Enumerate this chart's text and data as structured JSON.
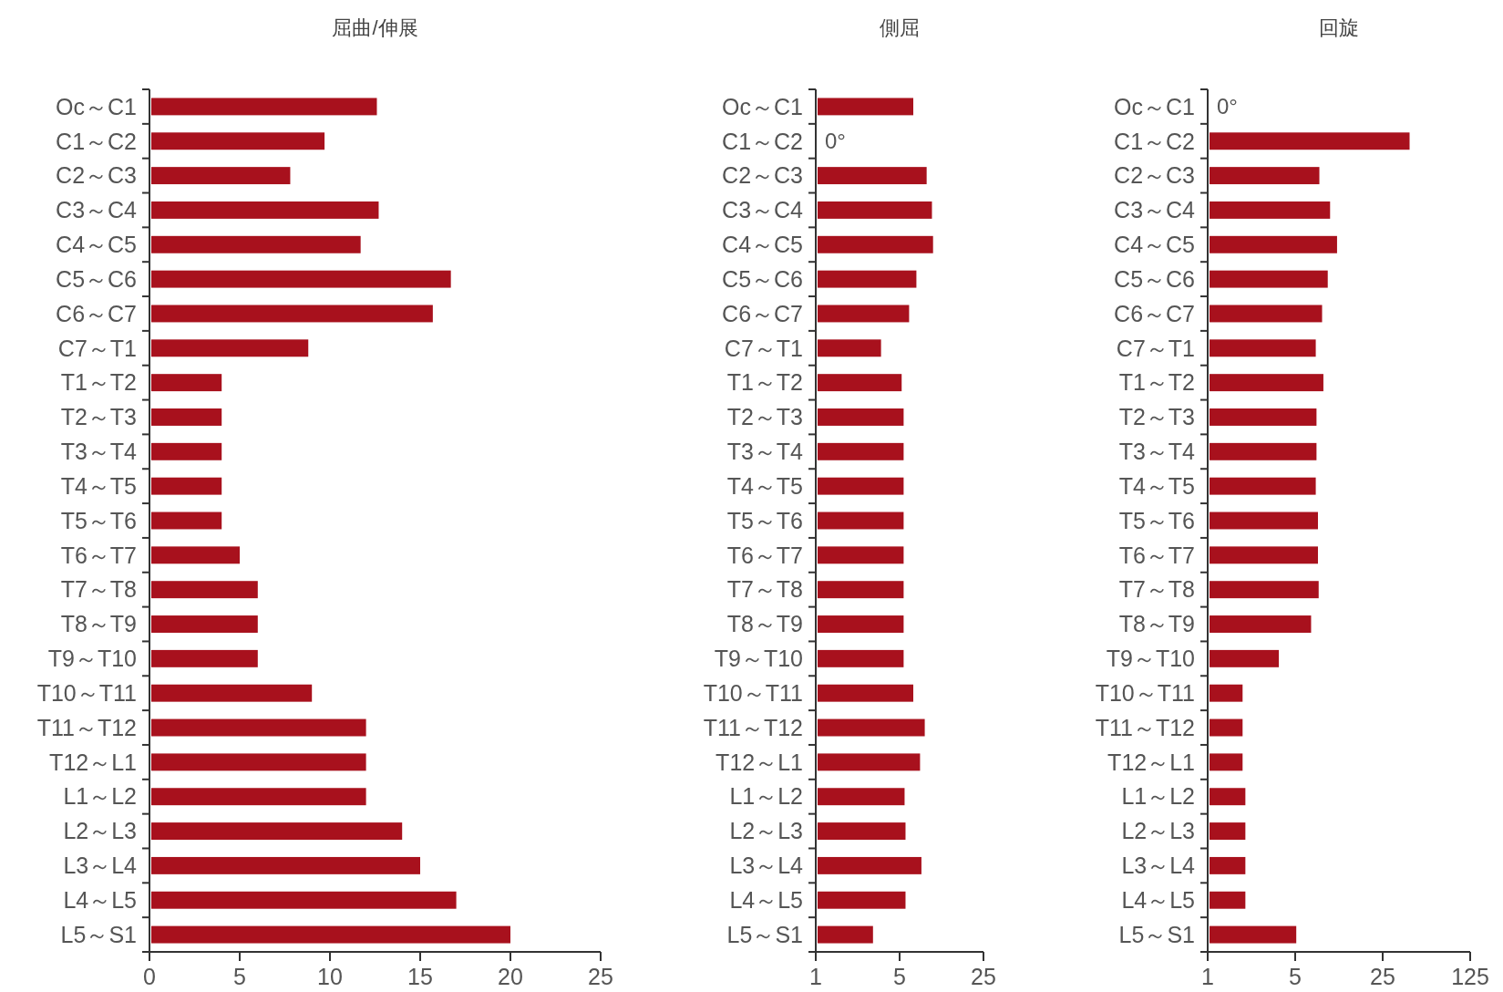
{
  "chart_data": [
    {
      "type": "bar",
      "orientation": "horizontal",
      "title": "屈曲/伸展",
      "categories": [
        "Oc～C1",
        "C1～C2",
        "C2～C3",
        "C3～C4",
        "C4～C5",
        "C5～C6",
        "C6～C7",
        "C7～T1",
        "T1～T2",
        "T2～T3",
        "T3～T4",
        "T4～T5",
        "T5～T6",
        "T6～T7",
        "T7～T8",
        "T8～T9",
        "T9～T10",
        "T10～T11",
        "T11～T12",
        "T12～L1",
        "L1～L2",
        "L2～L3",
        "L3～L4",
        "L4～L5",
        "L5～S1"
      ],
      "values": [
        12.6,
        9.7,
        7.8,
        12.7,
        11.7,
        16.7,
        15.7,
        8.8,
        4,
        4,
        4,
        4,
        4,
        5,
        6,
        6,
        6,
        9,
        12,
        12,
        12,
        14,
        15,
        17,
        20
      ],
      "color": "#a8111d",
      "xlim": [
        0,
        25
      ],
      "xticks": [
        0,
        5,
        10,
        15,
        20,
        25
      ]
    },
    {
      "type": "bar",
      "orientation": "horizontal",
      "title": "側屈",
      "log": "x",
      "categories": [
        "Oc～C1",
        "C1～C2",
        "C2～C3",
        "C3～C4",
        "C4～C5",
        "C5～C6",
        "C6～C7",
        "C7～T1",
        "T1～T2",
        "T2～T3",
        "T3～T4",
        "T4～T5",
        "T5～T6",
        "T6～T7",
        "T7～T8",
        "T8～T9",
        "T9～T10",
        "T10～T11",
        "T11～T12",
        "T12～L1",
        "L1～L2",
        "L2～L3",
        "L3～L4",
        "L4～L5",
        "L5～S1"
      ],
      "values": [
        6.5,
        null,
        8.4,
        9.3,
        9.5,
        6.9,
        6,
        3.5,
        5.2,
        5.4,
        5.4,
        5.4,
        5.4,
        5.4,
        5.4,
        5.4,
        5.4,
        6.5,
        8.1,
        7.4,
        5.5,
        5.6,
        7.6,
        5.6,
        3
      ],
      "color": "#a8111d",
      "xlim": [
        1,
        25
      ],
      "xticks": [
        1,
        5,
        25
      ],
      "annotations": [
        "0°"
      ]
    },
    {
      "type": "bar",
      "orientation": "horizontal",
      "title": "回旋",
      "log": "x",
      "categories": [
        "Oc～C1",
        "C1～C2",
        "C2～C3",
        "C3～C4",
        "C4～C5",
        "C5～C6",
        "C6～C7",
        "C7～T1",
        "T1～T2",
        "T2～T3",
        "T3～T4",
        "T4～T5",
        "T5～T6",
        "T6～T7",
        "T7～T8",
        "T8～T9",
        "T9～T10",
        "T10～T11",
        "T11～T12",
        "T12～L1",
        "L1～L2",
        "L2～L3",
        "L3～L4",
        "L4～L5",
        "L5～S1"
      ],
      "values": [
        null,
        41,
        7.8,
        9.5,
        10.8,
        9.1,
        8.2,
        7.3,
        8.4,
        7.4,
        7.4,
        7.3,
        7.6,
        7.6,
        7.7,
        6.7,
        3.7,
        1.9,
        1.9,
        1.9,
        2,
        2,
        2,
        2,
        5.1
      ],
      "color": "#a8111d",
      "xlim": [
        1,
        125
      ],
      "xticks": [
        1,
        5,
        25,
        125
      ],
      "annotations": [
        "0°"
      ]
    }
  ]
}
